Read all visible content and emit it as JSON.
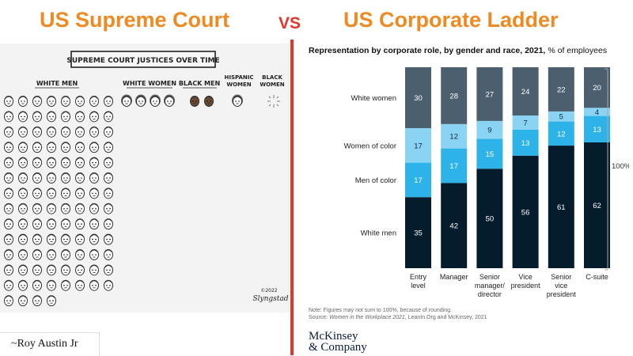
{
  "header": {
    "left_title": "US Supreme Court",
    "vs": "VS",
    "right_title": "US Corporate Ladder"
  },
  "cartoon": {
    "banner": "SUPREME COURT JUSTICES OVER TIME",
    "groups": [
      {
        "label": "WHITE MEN",
        "count": 108
      },
      {
        "label": "WHITE WOMEN",
        "count": 4
      },
      {
        "label": "BLACK MEN",
        "count": 2
      },
      {
        "label": "HISPANIC WOMEN",
        "count": 1
      },
      {
        "label": "BLACK WOMEN",
        "count": 0
      }
    ],
    "signature_year": "©2022",
    "signature_name": "Slyngstad",
    "credit": "~Roy Austin Jr"
  },
  "chart_data": {
    "type": "bar",
    "stacked": true,
    "title": "Representation by corporate role, by gender and race, 2021,",
    "unit_note": "% of employees",
    "categories": [
      [
        "Entry",
        "level"
      ],
      [
        "Manager"
      ],
      [
        "Senior",
        "manager/",
        "director"
      ],
      [
        "Vice",
        "president"
      ],
      [
        "Senior",
        "vice",
        "president"
      ],
      [
        "C-suite"
      ]
    ],
    "series": [
      {
        "name": "White men",
        "color": "#051c2c",
        "values": [
          35,
          42,
          50,
          56,
          61,
          62
        ]
      },
      {
        "name": "Men of color",
        "color": "#2db3e8",
        "values": [
          17,
          17,
          15,
          13,
          12,
          13
        ]
      },
      {
        "name": "Women of color",
        "color": "#8bd3f3",
        "values": [
          17,
          12,
          9,
          7,
          5,
          4
        ]
      },
      {
        "name": "White women",
        "color": "#4b5f6e",
        "values": [
          30,
          28,
          27,
          24,
          22,
          20
        ]
      }
    ],
    "total_label": "100%",
    "note": "Note: Figures may not sum to 100%, because of rounding.",
    "source_prefix": "Source: ",
    "source_italic": "Women in the Workplace 2021",
    "source_suffix": ", LeanIn.Org and McKinsey, 2021"
  },
  "brand": {
    "line1": "McKinsey",
    "line2": "& Company"
  }
}
